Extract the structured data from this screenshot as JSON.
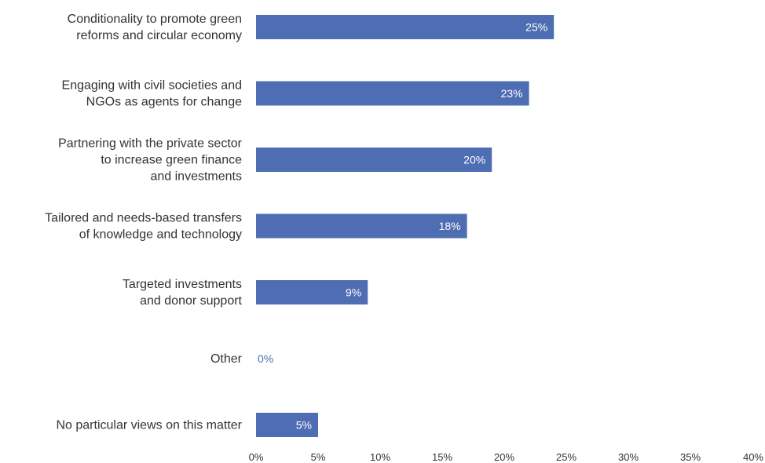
{
  "chart_data": {
    "type": "bar",
    "orientation": "horizontal",
    "categories": [
      [
        "Conditionality to promote green",
        "reforms and circular economy"
      ],
      [
        "Engaging with civil societies and",
        "NGOs as agents for change"
      ],
      [
        "Partnering with the private sector",
        "to increase green finance",
        "and investments"
      ],
      [
        "Tailored and needs-based transfers",
        "of knowledge and technology"
      ],
      [
        "Targeted investments",
        "and donor support"
      ],
      [
        "Other"
      ],
      [
        "No particular views on this matter"
      ]
    ],
    "values": [
      24,
      22,
      19,
      17,
      9,
      0,
      5
    ],
    "data_labels": [
      "25%",
      "23%",
      "20%",
      "18%",
      "9%",
      "0%",
      "5%"
    ],
    "x_ticks": [
      "0%",
      "5%",
      "10%",
      "15%",
      "20%",
      "25%",
      "30%",
      "35%",
      "40%"
    ],
    "xlim": [
      0,
      40
    ],
    "grid": false,
    "legend": "none",
    "title": "",
    "xlabel": "",
    "ylabel": "",
    "colors": {
      "bar": "#4F6DB2",
      "label_inside": "#ffffff",
      "label_outside": "#4F6DB2",
      "text": "#333333"
    }
  }
}
